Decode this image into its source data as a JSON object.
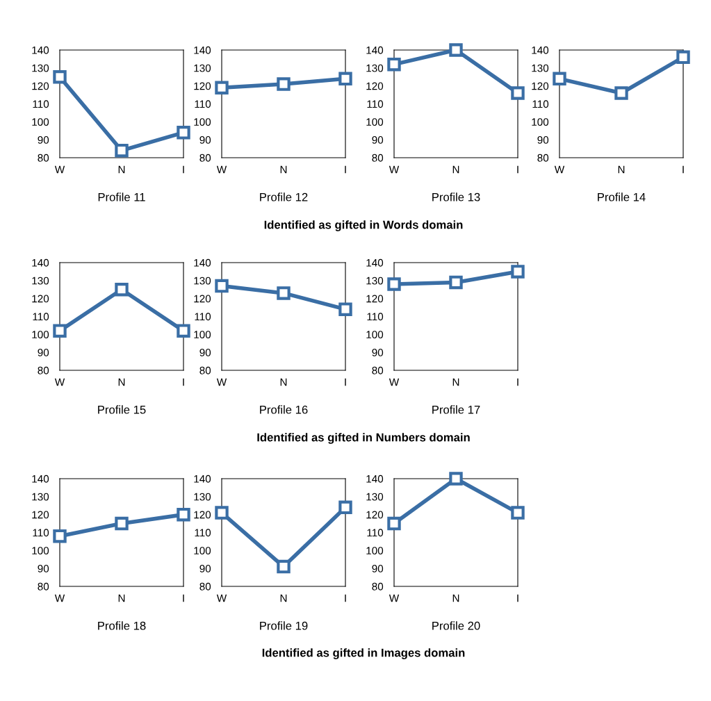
{
  "chart_data": [
    {
      "type": "line",
      "xlabel": "Profile 11",
      "categories": [
        "W",
        "N",
        "I"
      ],
      "series": [
        {
          "color": "#3a6ea5",
          "values": [
            125,
            84,
            94
          ]
        }
      ],
      "ylim": [
        80,
        140
      ],
      "yticks": [
        80,
        90,
        100,
        110,
        120,
        130,
        140
      ],
      "marker": "square",
      "grid": false
    },
    {
      "type": "line",
      "xlabel": "Profile 12",
      "categories": [
        "W",
        "N",
        "I"
      ],
      "series": [
        {
          "color": "#3a6ea5",
          "values": [
            119,
            121,
            124
          ]
        }
      ],
      "ylim": [
        80,
        140
      ],
      "yticks": [
        80,
        90,
        100,
        110,
        120,
        130,
        140
      ],
      "marker": "square",
      "grid": false
    },
    {
      "type": "line",
      "xlabel": "Profile 13",
      "categories": [
        "W",
        "N",
        "I"
      ],
      "series": [
        {
          "color": "#3a6ea5",
          "values": [
            132,
            140,
            116
          ]
        }
      ],
      "ylim": [
        80,
        140
      ],
      "yticks": [
        80,
        90,
        100,
        110,
        120,
        130,
        140
      ],
      "marker": "square",
      "grid": false
    },
    {
      "type": "line",
      "xlabel": "Profile 14",
      "categories": [
        "W",
        "N",
        "I"
      ],
      "series": [
        {
          "color": "#3a6ea5",
          "values": [
            124,
            116,
            136
          ]
        }
      ],
      "ylim": [
        80,
        140
      ],
      "yticks": [
        80,
        90,
        100,
        110,
        120,
        130,
        140
      ],
      "marker": "square",
      "grid": false,
      "annotations": [
        "Identified as gifted in Words domain"
      ]
    },
    {
      "type": "line",
      "xlabel": "Profile 15",
      "categories": [
        "W",
        "N",
        "I"
      ],
      "series": [
        {
          "color": "#3a6ea5",
          "values": [
            102,
            125,
            102
          ]
        }
      ],
      "ylim": [
        80,
        140
      ],
      "yticks": [
        80,
        90,
        100,
        110,
        120,
        130,
        140
      ],
      "marker": "square",
      "grid": false
    },
    {
      "type": "line",
      "xlabel": "Profile 16",
      "categories": [
        "W",
        "N",
        "I"
      ],
      "series": [
        {
          "color": "#3a6ea5",
          "values": [
            127,
            123,
            114
          ]
        }
      ],
      "ylim": [
        80,
        140
      ],
      "yticks": [
        80,
        90,
        100,
        110,
        120,
        130,
        140
      ],
      "marker": "square",
      "grid": false
    },
    {
      "type": "line",
      "xlabel": "Profile 17",
      "categories": [
        "W",
        "N",
        "I"
      ],
      "series": [
        {
          "color": "#3a6ea5",
          "values": [
            128,
            129,
            135
          ]
        }
      ],
      "ylim": [
        80,
        140
      ],
      "yticks": [
        80,
        90,
        100,
        110,
        120,
        130,
        140
      ],
      "marker": "square",
      "grid": false,
      "annotations": [
        "Identified as gifted in Numbers domain"
      ]
    },
    {
      "type": "line",
      "xlabel": "Profile 18",
      "categories": [
        "W",
        "N",
        "I"
      ],
      "series": [
        {
          "color": "#3a6ea5",
          "values": [
            108,
            115,
            120
          ]
        }
      ],
      "ylim": [
        80,
        140
      ],
      "yticks": [
        80,
        90,
        100,
        110,
        120,
        130,
        140
      ],
      "marker": "square",
      "grid": false
    },
    {
      "type": "line",
      "xlabel": "Profile 19",
      "categories": [
        "W",
        "N",
        "I"
      ],
      "series": [
        {
          "color": "#3a6ea5",
          "values": [
            121,
            91,
            124
          ]
        }
      ],
      "ylim": [
        80,
        140
      ],
      "yticks": [
        80,
        90,
        100,
        110,
        120,
        130,
        140
      ],
      "marker": "square",
      "grid": false
    },
    {
      "type": "line",
      "xlabel": "Profile 20",
      "categories": [
        "W",
        "N",
        "I"
      ],
      "series": [
        {
          "color": "#3a6ea5",
          "values": [
            115,
            140,
            121
          ]
        }
      ],
      "ylim": [
        80,
        140
      ],
      "yticks": [
        80,
        90,
        100,
        110,
        120,
        130,
        140
      ],
      "marker": "square",
      "grid": false,
      "annotations": [
        "Identified as gifted in Images domain"
      ]
    }
  ]
}
